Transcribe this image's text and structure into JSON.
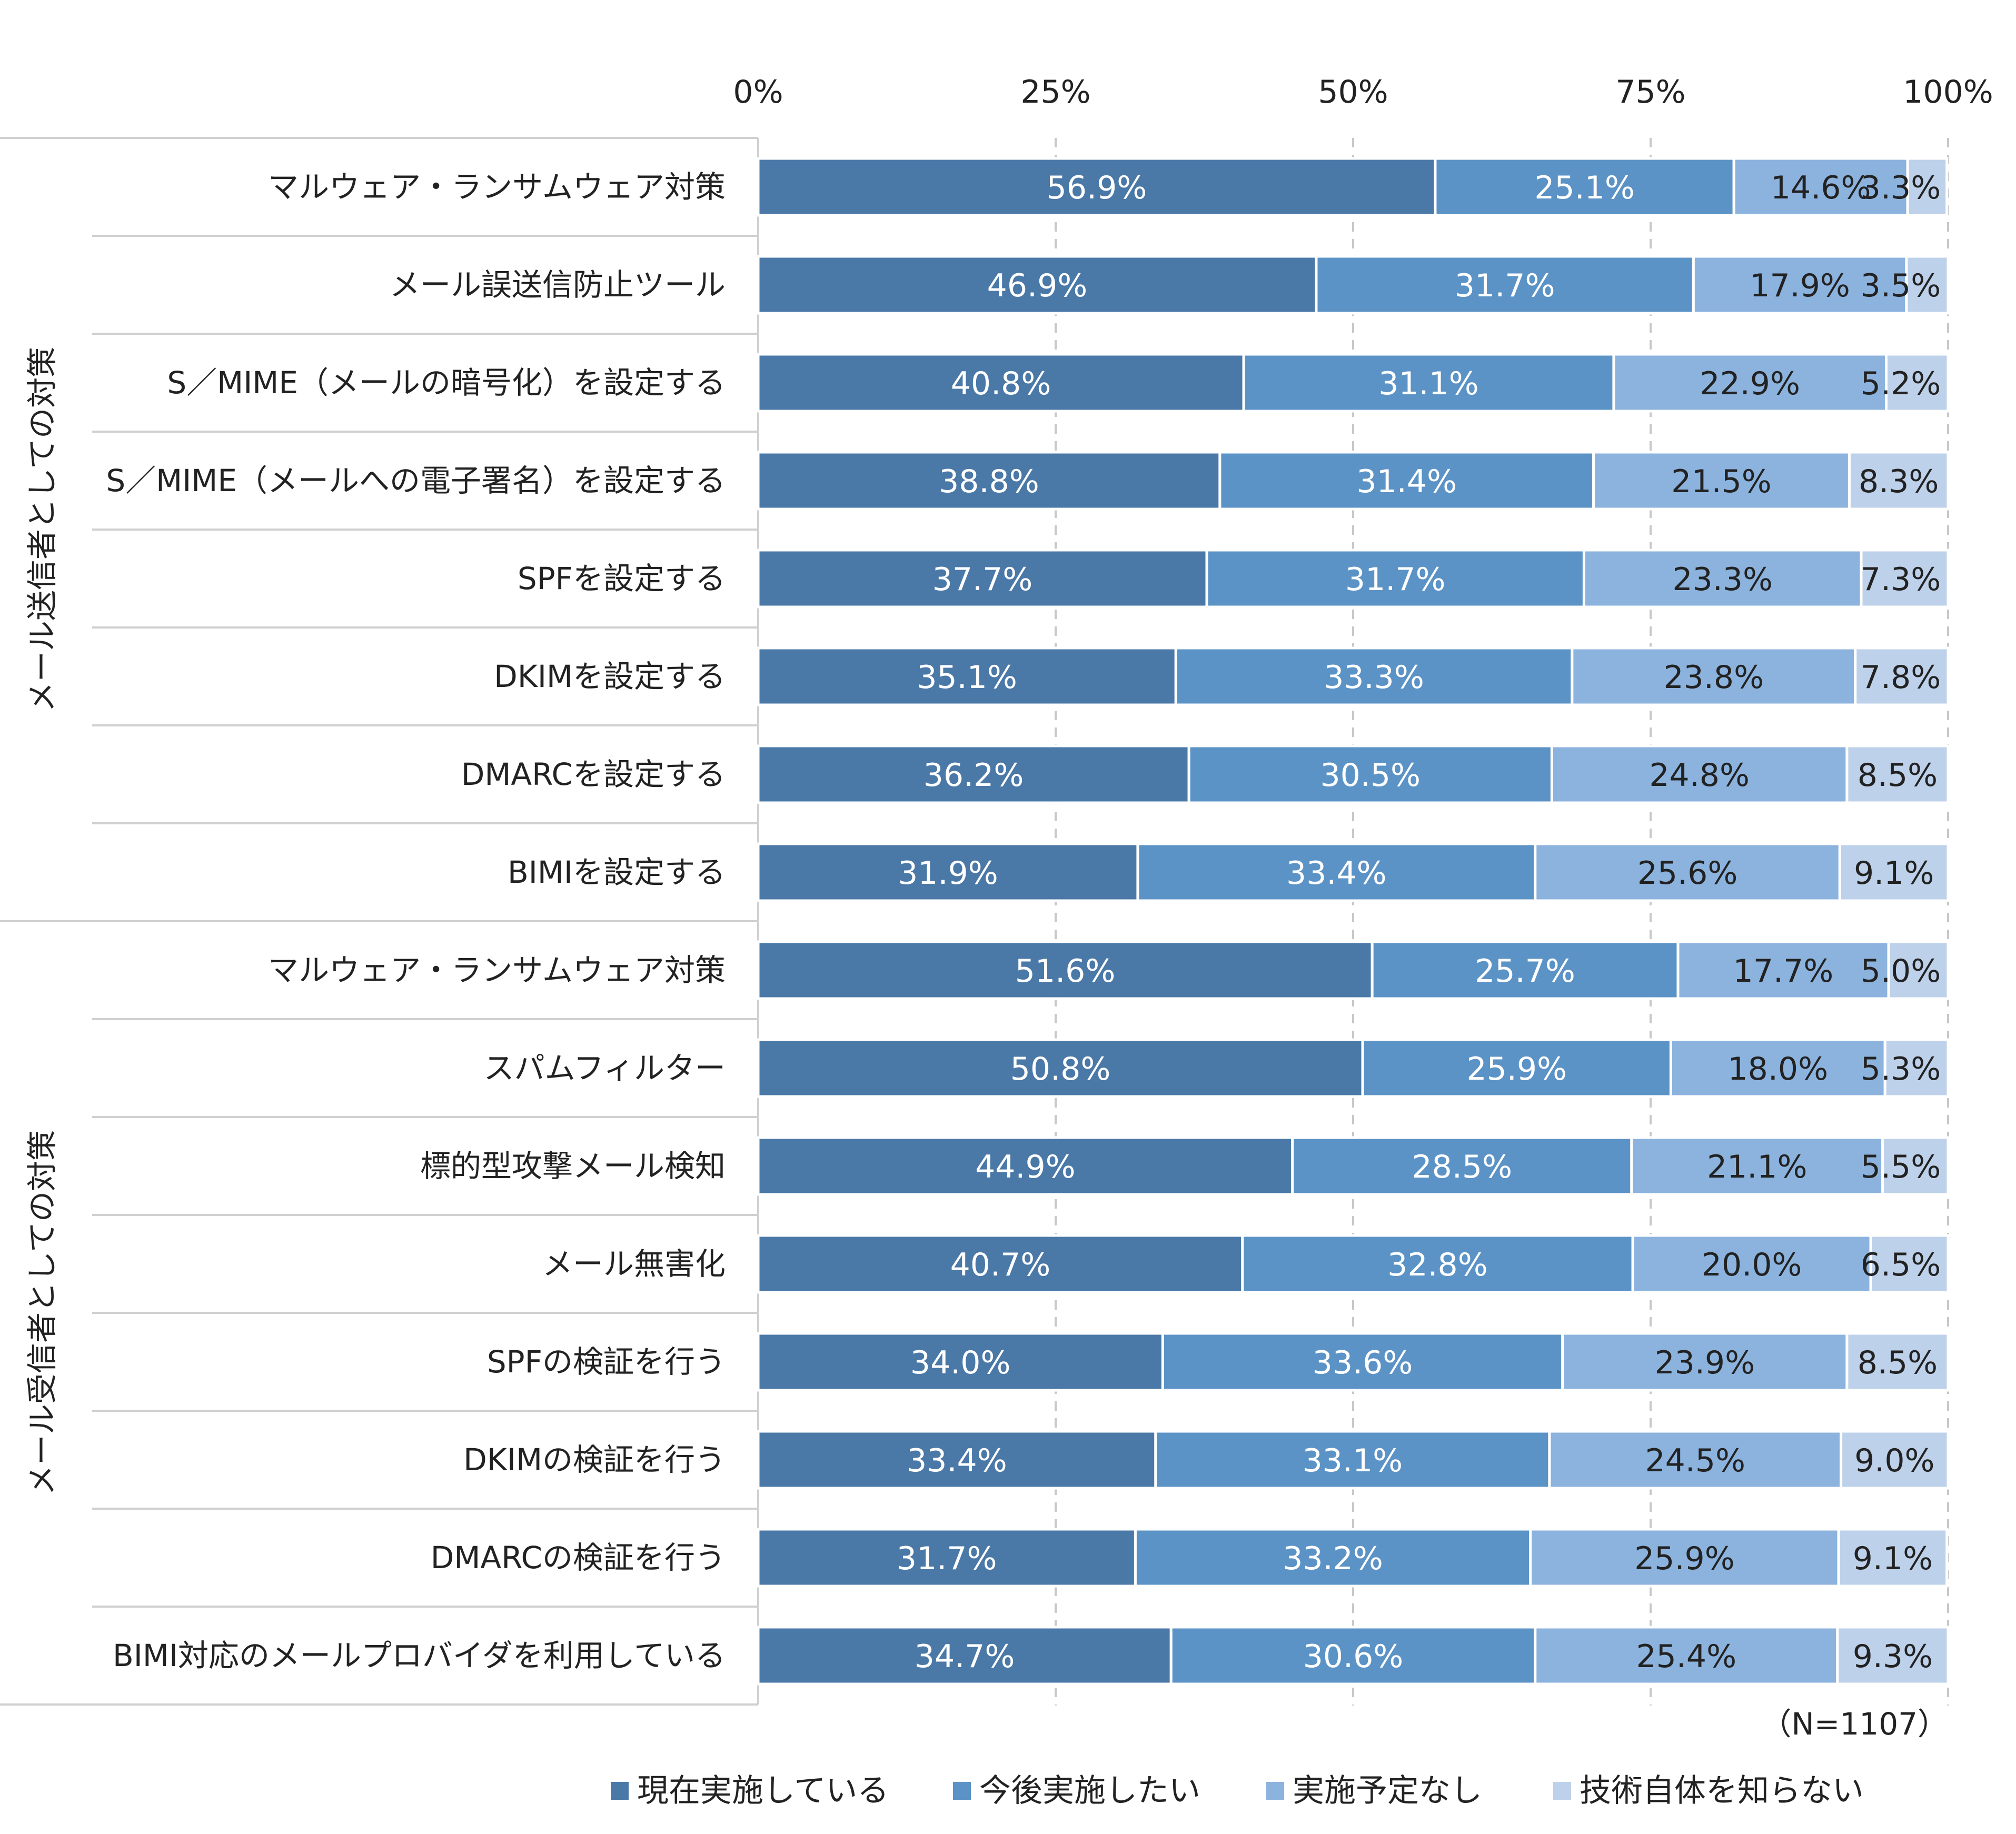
{
  "chart_data": {
    "type": "bar",
    "orientation": "horizontal",
    "stacked": true,
    "xlim": [
      0,
      100
    ],
    "x_ticks": [
      "0%",
      "25%",
      "50%",
      "75%",
      "100%"
    ],
    "grid": true,
    "legend_position": "bottom",
    "note": "（N=1107）",
    "groups": [
      {
        "label": "メール送信者としての対策",
        "categories": [
          "マルウェア・ランサムウェア対策",
          "メール誤送信防止ツール",
          "S／MIME（メールの暗号化）を設定する",
          "S／MIME（メールへの電子署名）を設定する",
          "SPFを設定する",
          "DKIMを設定する",
          "DMARCを設定する",
          "BIMIを設定する"
        ]
      },
      {
        "label": "メール受信者としての対策",
        "categories": [
          "マルウェア・ランサムウェア対策",
          "スパムフィルター",
          "標的型攻撃メール検知",
          "メール無害化",
          "SPFの検証を行う",
          "DKIMの検証を行う",
          "DMARCの検証を行う",
          "BIMI対応のメールプロバイダを利用している"
        ]
      }
    ],
    "series": [
      {
        "name": "現在実施している",
        "color": "#4a78a7",
        "label_color": "#ffffff",
        "values": [
          56.9,
          46.9,
          40.8,
          38.8,
          37.7,
          35.1,
          36.2,
          31.9,
          51.6,
          50.8,
          44.9,
          40.7,
          34.0,
          33.4,
          31.7,
          34.7
        ]
      },
      {
        "name": "今後実施したい",
        "color": "#5b93c6",
        "label_color": "#ffffff",
        "values": [
          25.1,
          31.7,
          31.1,
          31.4,
          31.7,
          33.3,
          30.5,
          33.4,
          25.7,
          25.9,
          28.5,
          32.8,
          33.6,
          33.1,
          33.2,
          30.6
        ]
      },
      {
        "name": "実施予定なし",
        "color": "#8cb3de",
        "label_color": "#222222",
        "values": [
          14.6,
          17.9,
          22.9,
          21.5,
          23.3,
          23.8,
          24.8,
          25.6,
          17.7,
          18.0,
          21.1,
          20.0,
          23.9,
          24.5,
          25.9,
          25.4
        ]
      },
      {
        "name": "技術自体を知らない",
        "color": "#bed1ea",
        "label_color": "#222222",
        "values": [
          3.3,
          3.5,
          5.2,
          8.3,
          7.3,
          7.8,
          8.5,
          9.1,
          5.0,
          5.3,
          5.5,
          6.5,
          8.5,
          9.0,
          9.1,
          9.3
        ]
      }
    ]
  }
}
